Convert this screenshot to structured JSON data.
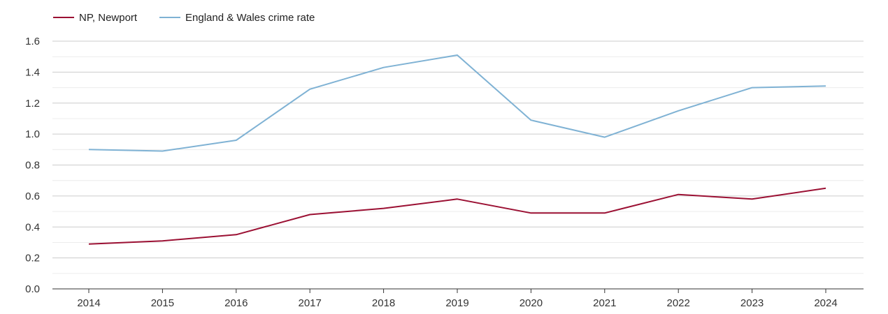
{
  "chart_data": {
    "type": "line",
    "title": "",
    "xlabel": "",
    "ylabel": "",
    "categories": [
      "2014",
      "2015",
      "2016",
      "2017",
      "2018",
      "2019",
      "2020",
      "2021",
      "2022",
      "2023",
      "2024"
    ],
    "ylim": [
      0,
      1.6
    ],
    "yticks": [
      "0.0",
      "0.2",
      "0.4",
      "0.6",
      "0.8",
      "1.0",
      "1.2",
      "1.4",
      "1.6"
    ],
    "grid": true,
    "legend_position": "top-left",
    "series": [
      {
        "name": "NP, Newport",
        "color": "#9b1033",
        "values": [
          0.29,
          0.31,
          0.35,
          0.48,
          0.52,
          0.58,
          0.49,
          0.49,
          0.61,
          0.58,
          0.65
        ]
      },
      {
        "name": "England & Wales crime rate",
        "color": "#7fb2d4",
        "values": [
          0.9,
          0.89,
          0.96,
          1.29,
          1.43,
          1.51,
          1.09,
          0.98,
          1.15,
          1.3,
          1.31
        ]
      }
    ]
  }
}
